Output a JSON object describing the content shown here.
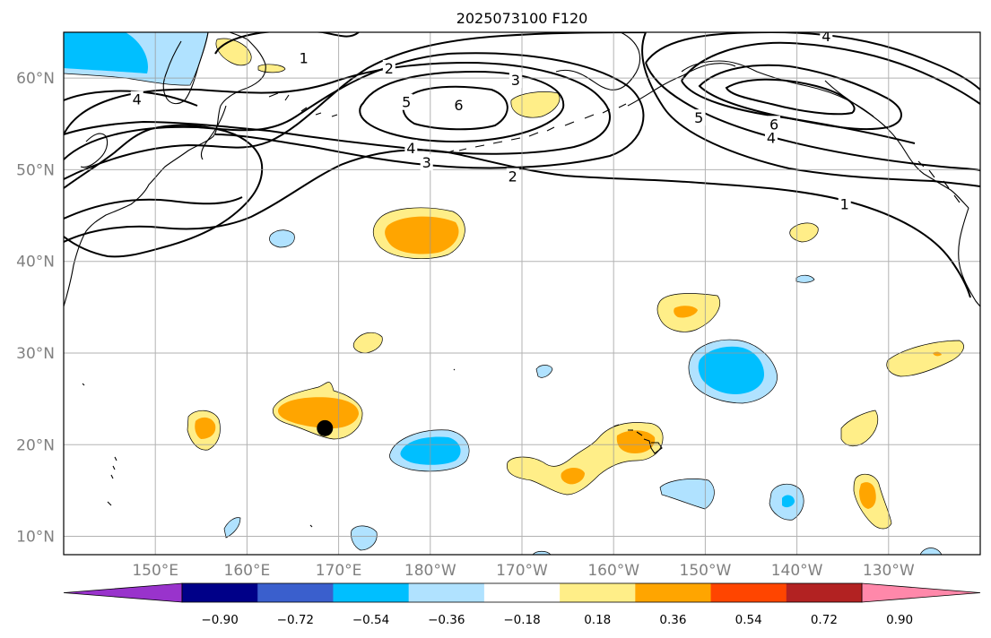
{
  "title": "2025073100 F120",
  "map": {
    "lon_range": [
      140,
      240
    ],
    "lat_range": [
      8,
      65
    ],
    "gridline_lons": [
      150,
      160,
      170,
      180,
      190,
      200,
      210,
      220,
      230
    ],
    "gridline_lats": [
      10,
      20,
      30,
      40,
      50,
      60
    ],
    "lon_tick_labels": [
      {
        "lon": 150,
        "label": "150°E"
      },
      {
        "lon": 160,
        "label": "160°E"
      },
      {
        "lon": 170,
        "label": "170°E"
      },
      {
        "lon": 180,
        "label": "180°W"
      },
      {
        "lon": 190,
        "label": "170°W"
      },
      {
        "lon": 200,
        "label": "160°W"
      },
      {
        "lon": 210,
        "label": "150°W"
      },
      {
        "lon": 220,
        "label": "140°W"
      },
      {
        "lon": 230,
        "label": "130°W"
      }
    ],
    "lat_tick_labels": [
      {
        "lat": 10,
        "label": "10°N"
      },
      {
        "lat": 20,
        "label": "20°N"
      },
      {
        "lat": 30,
        "label": "30°N"
      },
      {
        "lat": 40,
        "label": "40°N"
      },
      {
        "lat": 50,
        "label": "50°N"
      },
      {
        "lat": 60,
        "label": "60°N"
      }
    ],
    "marker": {
      "lon": 168.5,
      "lat": 21.8,
      "color": "#000000"
    },
    "contour_labels": [
      {
        "text": "1",
        "lon": 166.2,
        "lat": 62.2
      },
      {
        "text": "2",
        "lon": 175.5,
        "lat": 61.1
      },
      {
        "text": "3",
        "lon": 189.3,
        "lat": 59.8
      },
      {
        "text": "4",
        "lon": 148.0,
        "lat": 57.7
      },
      {
        "text": "5",
        "lon": 177.4,
        "lat": 57.4
      },
      {
        "text": "6",
        "lon": 183.1,
        "lat": 57.1
      },
      {
        "text": "4",
        "lon": 177.9,
        "lat": 52.4
      },
      {
        "text": "3",
        "lon": 179.6,
        "lat": 50.8
      },
      {
        "text": "2",
        "lon": 189.0,
        "lat": 49.3
      },
      {
        "text": "5",
        "lon": 209.3,
        "lat": 55.7
      },
      {
        "text": "6",
        "lon": 217.5,
        "lat": 55.0
      },
      {
        "text": "4",
        "lon": 217.2,
        "lat": 53.5
      },
      {
        "text": "4",
        "lon": 223.2,
        "lat": 64.6
      },
      {
        "text": "1",
        "lon": 225.2,
        "lat": 46.3
      }
    ]
  },
  "colorbar": {
    "levels": [
      -0.9,
      -0.72,
      -0.54,
      -0.36,
      -0.18,
      0.18,
      0.36,
      0.54,
      0.72,
      0.9
    ],
    "tick_labels": [
      "−0.90",
      "−0.72",
      "−0.54",
      "−0.36",
      "−0.18",
      "0.18",
      "0.36",
      "0.54",
      "0.72",
      "0.90"
    ],
    "under_color": "#9933cc",
    "over_color": "#ff88aa",
    "colors": [
      "#000088",
      "#3a5fcd",
      "#00bfff",
      "#b0e2ff",
      "#ffffff",
      "#ffee88",
      "#ffa500",
      "#ff4500",
      "#b22222"
    ]
  },
  "chart_data": {
    "type": "heatmap",
    "title": "2025073100 F120",
    "xlabel": "",
    "ylabel": "",
    "xlim": [
      140,
      240
    ],
    "ylim": [
      8,
      65
    ],
    "grid": true,
    "legend": "colorbar-bottom",
    "contour_levels": [
      1,
      2,
      3,
      4,
      5,
      6
    ],
    "fill_levels": [
      -0.9,
      -0.72,
      -0.54,
      -0.36,
      -0.18,
      0.18,
      0.36,
      0.54,
      0.72,
      0.9
    ],
    "fill_regions": [
      {
        "lon": 147.5,
        "lat": 62.0,
        "value": -0.45
      },
      {
        "lon": 181.0,
        "lat": 42.8,
        "value": 0.4
      },
      {
        "lon": 168.5,
        "lat": 23.0,
        "value": 0.4
      },
      {
        "lon": 154.5,
        "lat": 21.3,
        "value": 0.38
      },
      {
        "lon": 180.0,
        "lat": 19.5,
        "value": -0.45
      },
      {
        "lon": 204.0,
        "lat": 20.2,
        "value": 0.38
      },
      {
        "lon": 197.5,
        "lat": 16.8,
        "value": 0.36
      },
      {
        "lon": 213.5,
        "lat": 28.2,
        "value": -0.45
      },
      {
        "lon": 210.0,
        "lat": 34.5,
        "value": 0.36
      },
      {
        "lon": 220.2,
        "lat": 13.8,
        "value": -0.4
      },
      {
        "lon": 228.0,
        "lat": 14.6,
        "value": 0.38
      },
      {
        "lon": 235.0,
        "lat": 29.6,
        "value": 0.3
      },
      {
        "lon": 230.0,
        "lat": 21.0,
        "value": 0.25
      },
      {
        "lon": 218.0,
        "lat": 42.5,
        "value": 0.25
      },
      {
        "lon": 193.0,
        "lat": 57.6,
        "value": 0.25
      },
      {
        "lon": 158.0,
        "lat": 63.2,
        "value": 0.25
      },
      {
        "lon": 163.5,
        "lat": 40.8,
        "value": -0.25
      },
      {
        "lon": 176.2,
        "lat": 30.8,
        "value": 0.25
      },
      {
        "lon": 210.5,
        "lat": 14.6,
        "value": -0.25
      },
      {
        "lon": 172.5,
        "lat": 9.7,
        "value": -0.25
      },
      {
        "lon": 158.5,
        "lat": 11.0,
        "value": -0.25
      },
      {
        "lon": 190.5,
        "lat": 35.3,
        "value": -0.22
      },
      {
        "lon": 239.0,
        "lat": 9.5,
        "value": -0.2
      },
      {
        "lon": 191.5,
        "lat": 8.5,
        "value": -0.2
      },
      {
        "lon": 221.8,
        "lat": 38.1,
        "value": -0.2
      }
    ]
  }
}
